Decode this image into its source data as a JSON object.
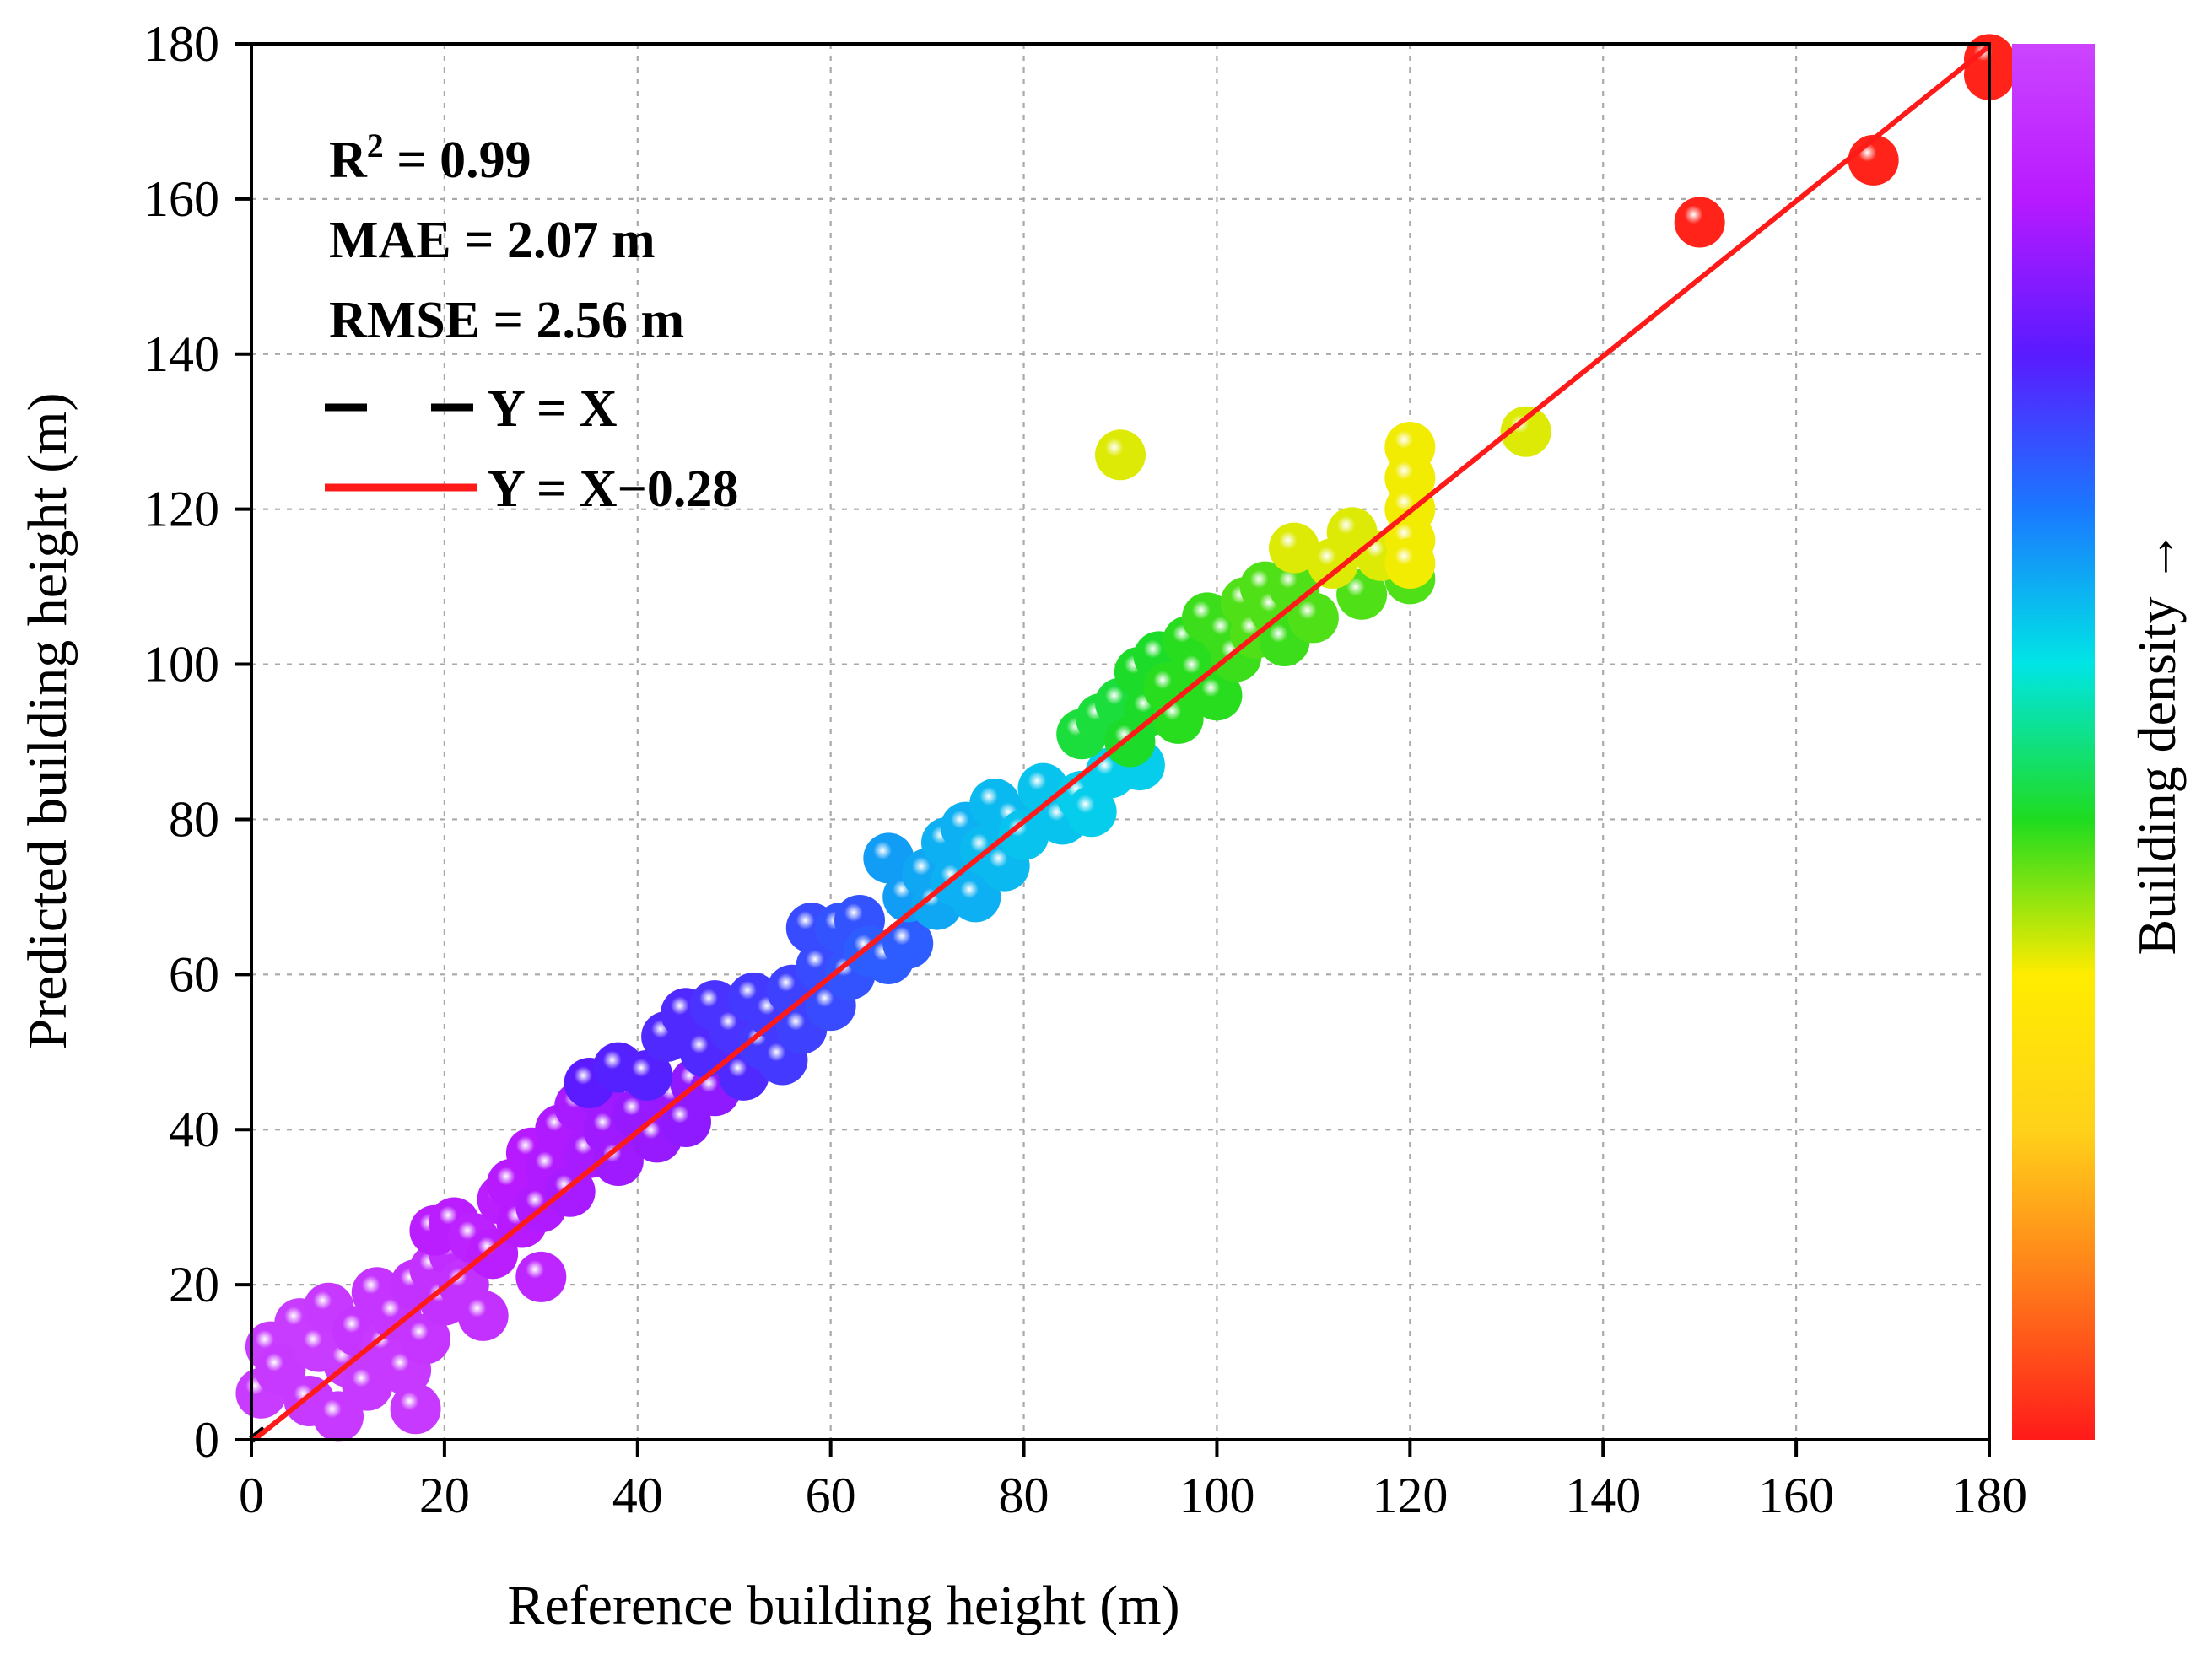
{
  "chart_data": {
    "type": "scatter",
    "xlabel": "Reference building height (m)",
    "ylabel": "Predicted building height (m)",
    "xlim": [
      0,
      180
    ],
    "ylim": [
      0,
      180
    ],
    "xticks": [
      "0",
      "20",
      "40",
      "60",
      "80",
      "100",
      "120",
      "140",
      "160",
      "180"
    ],
    "yticks": [
      "0",
      "20",
      "40",
      "60",
      "80",
      "100",
      "120",
      "140",
      "160",
      "180"
    ],
    "grid": true,
    "stats": {
      "r2_prefix": "R",
      "r2_sup": "2",
      "r2_value": " = 0.99",
      "mae": "MAE = 2.07 m",
      "rmse": "RMSE = 2.56 m"
    },
    "legend": [
      {
        "label": "Y = X",
        "style": "dashed",
        "color": "#000000"
      },
      {
        "label": "Y = X−0.28",
        "style": "solid",
        "color": "#ff1a1a"
      }
    ],
    "fit_line": {
      "slope": 1,
      "intercept": -0.28,
      "x_range": [
        0,
        180
      ],
      "color": "#ff1a1a"
    },
    "identity_line": {
      "x_range": [
        0,
        2
      ],
      "color": "#000000"
    },
    "colorbar": {
      "label": "Building density →",
      "stops": [
        "#ff1a1a",
        "#ff7a1a",
        "#ffd21a",
        "#ffec00",
        "#1fdc1f",
        "#00e5e5",
        "#1a78ff",
        "#5a1aff",
        "#b81aff",
        "#cc44ff"
      ]
    },
    "points": [
      [
        1,
        6,
        0.98
      ],
      [
        2,
        12,
        0.98
      ],
      [
        3,
        9,
        0.97
      ],
      [
        5,
        15,
        0.98
      ],
      [
        6,
        5,
        0.97
      ],
      [
        7,
        12,
        0.98
      ],
      [
        8,
        17,
        0.97
      ],
      [
        9,
        3,
        0.97
      ],
      [
        10,
        10,
        0.98
      ],
      [
        11,
        14,
        0.96
      ],
      [
        12,
        7,
        0.97
      ],
      [
        13,
        19,
        0.96
      ],
      [
        14,
        12,
        0.97
      ],
      [
        15,
        16,
        0.96
      ],
      [
        16,
        9,
        0.97
      ],
      [
        17,
        20,
        0.95
      ],
      [
        17,
        4,
        0.97
      ],
      [
        18,
        13,
        0.96
      ],
      [
        19,
        22,
        0.95
      ],
      [
        20,
        18,
        0.95
      ],
      [
        21,
        24,
        0.94
      ],
      [
        22,
        20,
        0.95
      ],
      [
        24,
        16,
        0.95
      ],
      [
        19,
        27,
        0.9
      ],
      [
        21,
        28,
        0.9
      ],
      [
        23,
        26,
        0.91
      ],
      [
        25,
        24,
        0.9
      ],
      [
        26,
        31,
        0.9
      ],
      [
        27,
        33,
        0.89
      ],
      [
        28,
        28,
        0.89
      ],
      [
        29,
        37,
        0.89
      ],
      [
        30,
        30,
        0.88
      ],
      [
        30,
        21,
        0.92
      ],
      [
        31,
        35,
        0.88
      ],
      [
        32,
        40,
        0.88
      ],
      [
        33,
        32,
        0.87
      ],
      [
        34,
        43,
        0.87
      ],
      [
        35,
        37,
        0.87
      ],
      [
        36,
        45,
        0.86
      ],
      [
        37,
        40,
        0.86
      ],
      [
        38,
        36,
        0.86
      ],
      [
        40,
        42,
        0.85
      ],
      [
        42,
        39,
        0.85
      ],
      [
        44,
        44,
        0.85
      ],
      [
        45,
        41,
        0.84
      ],
      [
        46,
        46,
        0.84
      ],
      [
        48,
        45,
        0.84
      ],
      [
        35,
        46,
        0.78
      ],
      [
        38,
        48,
        0.77
      ],
      [
        41,
        47,
        0.77
      ],
      [
        43,
        52,
        0.76
      ],
      [
        45,
        55,
        0.76
      ],
      [
        47,
        50,
        0.76
      ],
      [
        48,
        56,
        0.75
      ],
      [
        50,
        53,
        0.75
      ],
      [
        51,
        47,
        0.76
      ],
      [
        52,
        57,
        0.74
      ],
      [
        53,
        51,
        0.74
      ],
      [
        54,
        55,
        0.74
      ],
      [
        55,
        49,
        0.74
      ],
      [
        56,
        58,
        0.73
      ],
      [
        57,
        53,
        0.73
      ],
      [
        58,
        66,
        0.72
      ],
      [
        59,
        61,
        0.72
      ],
      [
        60,
        56,
        0.72
      ],
      [
        61,
        66,
        0.71
      ],
      [
        62,
        60,
        0.71
      ],
      [
        63,
        67,
        0.71
      ],
      [
        64,
        63,
        0.7
      ],
      [
        66,
        62,
        0.7
      ],
      [
        68,
        64,
        0.7
      ],
      [
        66,
        75,
        0.63
      ],
      [
        68,
        70,
        0.63
      ],
      [
        70,
        73,
        0.62
      ],
      [
        71,
        69,
        0.62
      ],
      [
        72,
        77,
        0.61
      ],
      [
        73,
        72,
        0.61
      ],
      [
        74,
        79,
        0.61
      ],
      [
        75,
        70,
        0.61
      ],
      [
        76,
        76,
        0.6
      ],
      [
        77,
        82,
        0.6
      ],
      [
        78,
        74,
        0.6
      ],
      [
        79,
        80,
        0.6
      ],
      [
        80,
        78,
        0.59
      ],
      [
        82,
        84,
        0.59
      ],
      [
        84,
        80,
        0.59
      ],
      [
        86,
        83,
        0.58
      ],
      [
        87,
        81,
        0.58
      ],
      [
        89,
        86,
        0.58
      ],
      [
        92,
        87,
        0.58
      ],
      [
        86,
        91,
        0.46
      ],
      [
        88,
        93,
        0.46
      ],
      [
        90,
        95,
        0.46
      ],
      [
        91,
        90,
        0.45
      ],
      [
        92,
        99,
        0.45
      ],
      [
        93,
        94,
        0.45
      ],
      [
        94,
        101,
        0.45
      ],
      [
        95,
        97,
        0.44
      ],
      [
        96,
        93,
        0.44
      ],
      [
        97,
        103,
        0.44
      ],
      [
        98,
        99,
        0.44
      ],
      [
        99,
        106,
        0.43
      ],
      [
        100,
        96,
        0.44
      ],
      [
        101,
        104,
        0.43
      ],
      [
        102,
        101,
        0.43
      ],
      [
        103,
        108,
        0.42
      ],
      [
        104,
        104,
        0.42
      ],
      [
        105,
        110,
        0.42
      ],
      [
        106,
        107,
        0.42
      ],
      [
        107,
        103,
        0.43
      ],
      [
        108,
        110,
        0.42
      ],
      [
        110,
        106,
        0.42
      ],
      [
        115,
        109,
        0.42
      ],
      [
        120,
        111,
        0.42
      ],
      [
        90,
        127,
        0.35
      ],
      [
        108,
        115,
        0.35
      ],
      [
        112,
        113,
        0.35
      ],
      [
        114,
        117,
        0.35
      ],
      [
        117,
        114,
        0.35
      ],
      [
        120,
        128,
        0.34
      ],
      [
        120,
        124,
        0.34
      ],
      [
        120,
        120,
        0.34
      ],
      [
        120,
        116,
        0.34
      ],
      [
        120,
        113,
        0.34
      ],
      [
        132,
        130,
        0.35
      ],
      [
        150,
        157,
        0.01
      ],
      [
        168,
        165,
        0.01
      ],
      [
        180,
        176,
        0.01
      ],
      [
        180,
        178,
        0.01
      ]
    ]
  }
}
